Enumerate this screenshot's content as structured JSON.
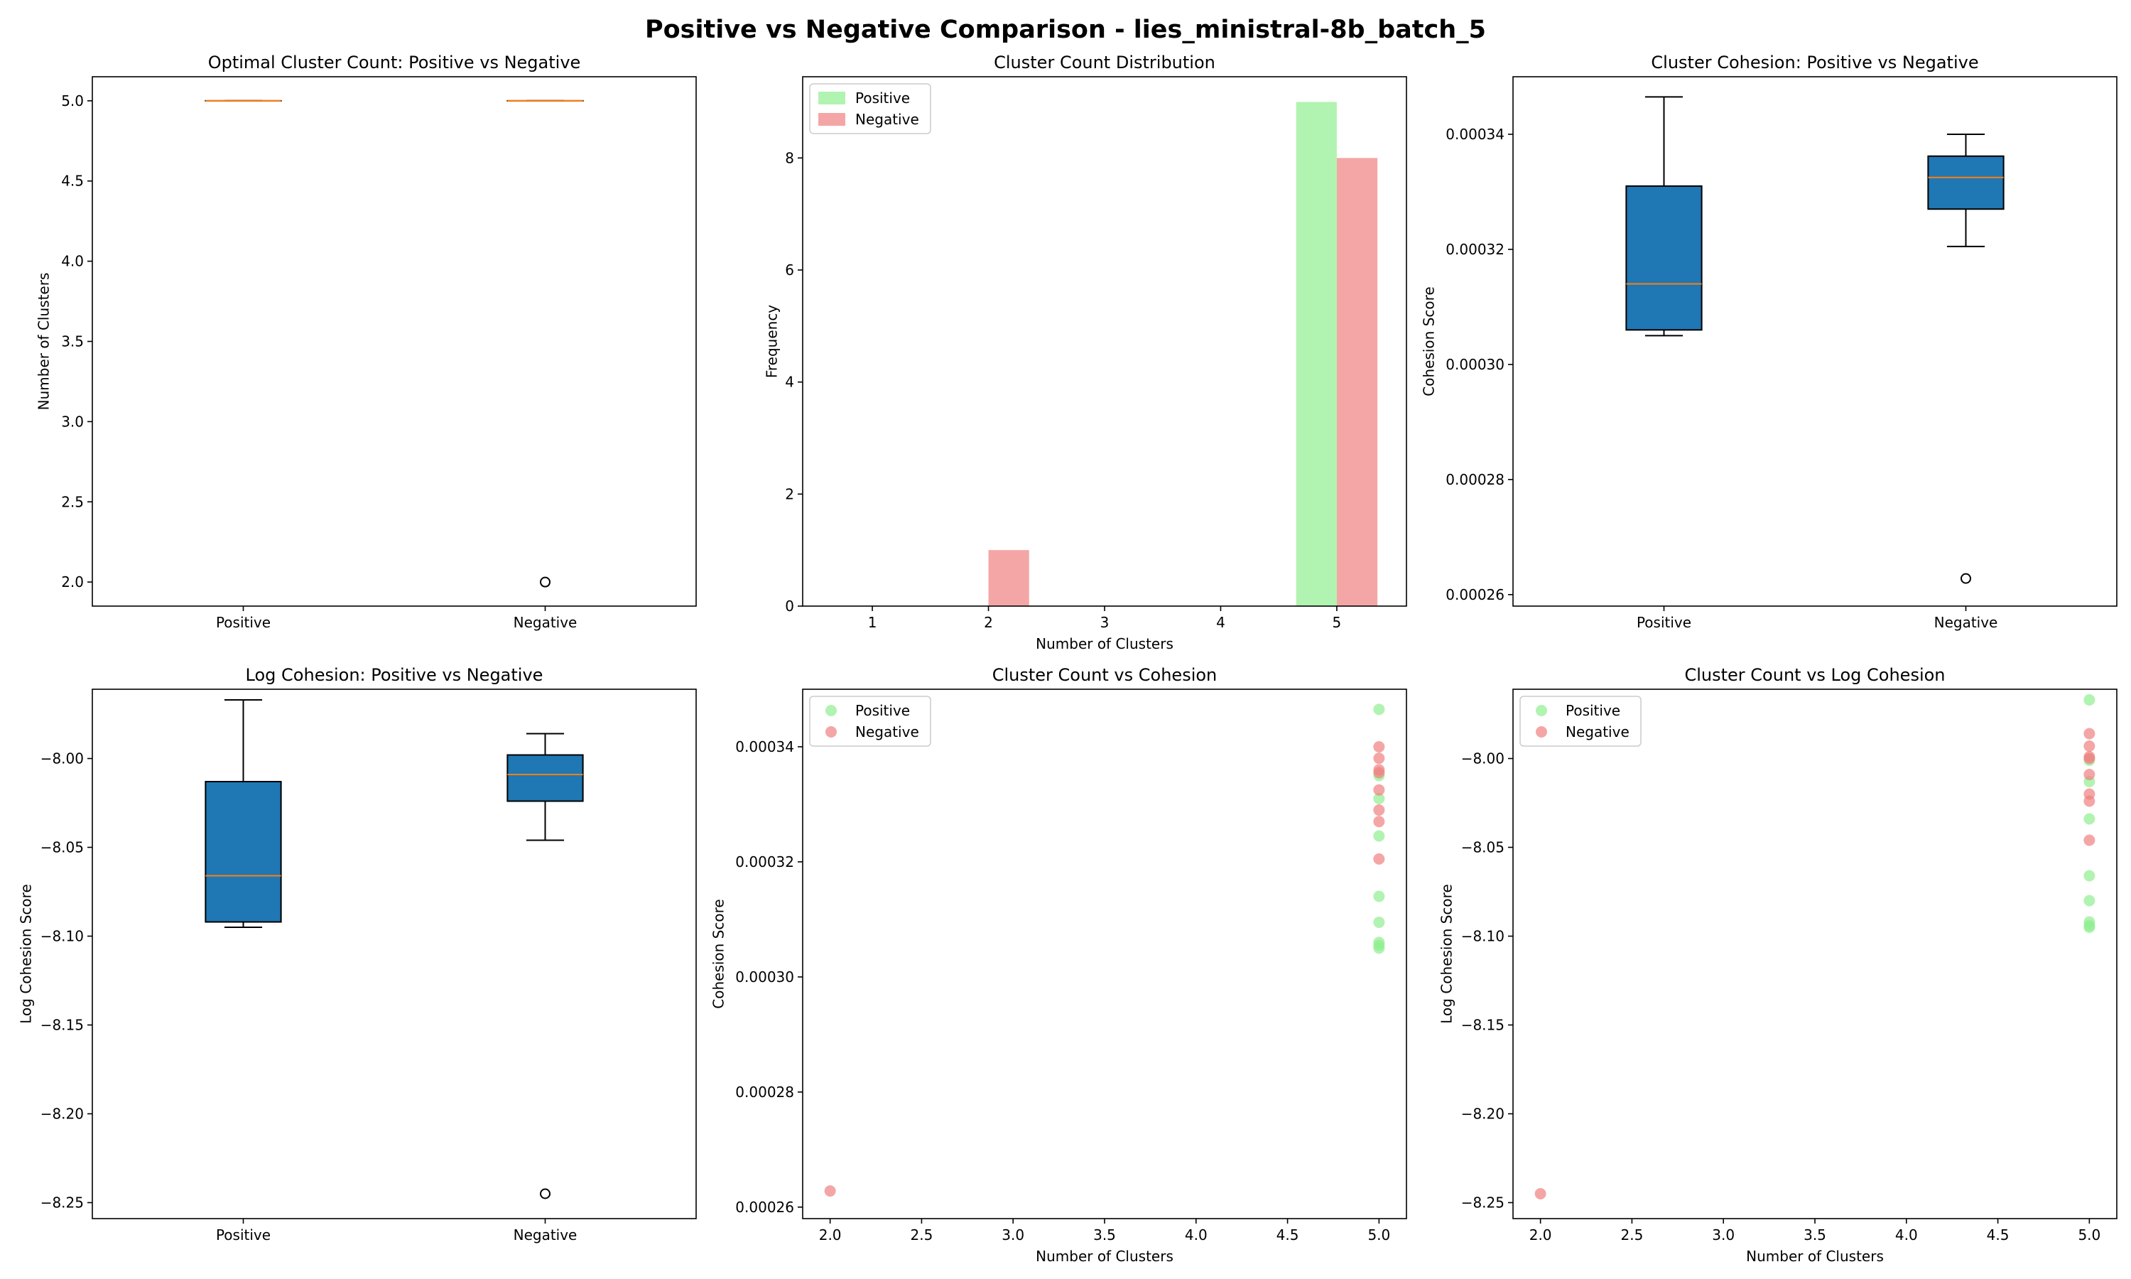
{
  "suptitle": "Positive vs Negative Comparison - lies_ministral-8b_batch_5",
  "colors": {
    "positive": "#90ee90",
    "negative": "#f08080",
    "box_fill": "#1f77b4",
    "median": "#ff7f0e"
  },
  "chart_data": [
    {
      "type": "box",
      "title": "Optimal Cluster Count: Positive vs Negative",
      "xlabel": "",
      "ylabel": "Number of Clusters",
      "categories": [
        "Positive",
        "Negative"
      ],
      "ylim": [
        1.85,
        5.15
      ],
      "yticks": [
        2.0,
        2.5,
        3.0,
        3.5,
        4.0,
        4.5,
        5.0
      ],
      "ytick_labels": [
        "2.0",
        "2.5",
        "3.0",
        "3.5",
        "4.0",
        "4.5",
        "5.0"
      ],
      "filled": false,
      "boxes": [
        {
          "q1": 5,
          "median": 5,
          "q3": 5,
          "whislo": 5,
          "whishi": 5,
          "fliers": []
        },
        {
          "q1": 5,
          "median": 5,
          "q3": 5,
          "whislo": 5,
          "whishi": 5,
          "fliers": [
            2
          ]
        }
      ]
    },
    {
      "type": "bar",
      "title": "Cluster Count Distribution",
      "xlabel": "Number of Clusters",
      "ylabel": "Frequency",
      "categories": [
        1,
        2,
        3,
        4,
        5
      ],
      "xlim": [
        0.4,
        5.6
      ],
      "ylim": [
        0,
        9.45
      ],
      "yticks": [
        0,
        2,
        4,
        6,
        8
      ],
      "ytick_labels": [
        "0",
        "2",
        "4",
        "6",
        "8"
      ],
      "legend": "top-left",
      "series": [
        {
          "name": "Positive",
          "values": [
            0,
            0,
            0,
            0,
            9
          ]
        },
        {
          "name": "Negative",
          "values": [
            0,
            1,
            0,
            0,
            8
          ]
        }
      ]
    },
    {
      "type": "box",
      "title": "Cluster Cohesion: Positive vs Negative",
      "xlabel": "",
      "ylabel": "Cohesion Score",
      "categories": [
        "Positive",
        "Negative"
      ],
      "ylim": [
        0.000258,
        0.00035
      ],
      "yticks": [
        0.00026,
        0.00028,
        0.0003,
        0.00032,
        0.00034
      ],
      "ytick_labels": [
        "0.00026",
        "0.00028",
        "0.00030",
        "0.00032",
        "0.00034"
      ],
      "filled": true,
      "boxes": [
        {
          "q1": 0.000306,
          "median": 0.000314,
          "q3": 0.000331,
          "whislo": 0.000305,
          "whishi": 0.0003465,
          "fliers": []
        },
        {
          "q1": 0.000327,
          "median": 0.0003325,
          "q3": 0.0003362,
          "whislo": 0.0003205,
          "whishi": 0.00034,
          "fliers": [
            0.0002628
          ]
        }
      ]
    },
    {
      "type": "box",
      "title": "Log Cohesion: Positive vs Negative",
      "xlabel": "",
      "ylabel": "Log Cohesion Score",
      "categories": [
        "Positive",
        "Negative"
      ],
      "ylim": [
        -8.259,
        -7.961
      ],
      "yticks": [
        -8.25,
        -8.2,
        -8.15,
        -8.1,
        -8.05,
        -8.0
      ],
      "ytick_labels": [
        "−8.25",
        "−8.20",
        "−8.15",
        "−8.10",
        "−8.05",
        "−8.00"
      ],
      "filled": true,
      "boxes": [
        {
          "q1": -8.092,
          "median": -8.066,
          "q3": -8.013,
          "whislo": -8.095,
          "whishi": -7.967,
          "fliers": []
        },
        {
          "q1": -8.024,
          "median": -8.009,
          "q3": -7.998,
          "whislo": -8.046,
          "whishi": -7.986,
          "fliers": [
            -8.245
          ]
        }
      ]
    },
    {
      "type": "scatter",
      "title": "Cluster Count vs Cohesion",
      "xlabel": "Number of Clusters",
      "ylabel": "Cohesion Score",
      "xlim": [
        1.85,
        5.15
      ],
      "ylim": [
        0.000258,
        0.00035
      ],
      "xticks": [
        2.0,
        2.5,
        3.0,
        3.5,
        4.0,
        4.5,
        5.0
      ],
      "xtick_labels": [
        "2.0",
        "2.5",
        "3.0",
        "3.5",
        "4.0",
        "4.5",
        "5.0"
      ],
      "yticks": [
        0.00026,
        0.00028,
        0.0003,
        0.00032,
        0.00034
      ],
      "ytick_labels": [
        "0.00026",
        "0.00028",
        "0.00030",
        "0.00032",
        "0.00034"
      ],
      "legend": "top-left",
      "series": [
        {
          "name": "Positive",
          "x": [
            5,
            5,
            5,
            5,
            5,
            5,
            5,
            5,
            5
          ],
          "y": [
            0.0003465,
            0.000335,
            0.000331,
            0.0003245,
            0.000314,
            0.0003095,
            0.000306,
            0.0003055,
            0.000305
          ]
        },
        {
          "name": "Negative",
          "x": [
            2,
            5,
            5,
            5,
            5,
            5,
            5,
            5,
            5
          ],
          "y": [
            0.0002628,
            0.00034,
            0.000338,
            0.000336,
            0.0003355,
            0.0003325,
            0.000329,
            0.000327,
            0.0003205
          ]
        }
      ]
    },
    {
      "type": "scatter",
      "title": "Cluster Count vs Log Cohesion",
      "xlabel": "Number of Clusters",
      "ylabel": "Log Cohesion Score",
      "xlim": [
        1.85,
        5.15
      ],
      "ylim": [
        -8.259,
        -7.961
      ],
      "xticks": [
        2.0,
        2.5,
        3.0,
        3.5,
        4.0,
        4.5,
        5.0
      ],
      "xtick_labels": [
        "2.0",
        "2.5",
        "3.0",
        "3.5",
        "4.0",
        "4.5",
        "5.0"
      ],
      "yticks": [
        -8.25,
        -8.2,
        -8.15,
        -8.1,
        -8.05,
        -8.0
      ],
      "ytick_labels": [
        "−8.25",
        "−8.20",
        "−8.15",
        "−8.10",
        "−8.05",
        "−8.00"
      ],
      "legend": "top-left",
      "series": [
        {
          "name": "Positive",
          "x": [
            5,
            5,
            5,
            5,
            5,
            5,
            5,
            5,
            5
          ],
          "y": [
            -7.967,
            -8.001,
            -8.013,
            -8.034,
            -8.066,
            -8.08,
            -8.092,
            -8.094,
            -8.095
          ]
        },
        {
          "name": "Negative",
          "x": [
            2,
            5,
            5,
            5,
            5,
            5,
            5,
            5,
            5
          ],
          "y": [
            -8.245,
            -7.986,
            -7.993,
            -7.999,
            -8.0,
            -8.009,
            -8.02,
            -8.024,
            -8.046
          ]
        }
      ]
    }
  ]
}
